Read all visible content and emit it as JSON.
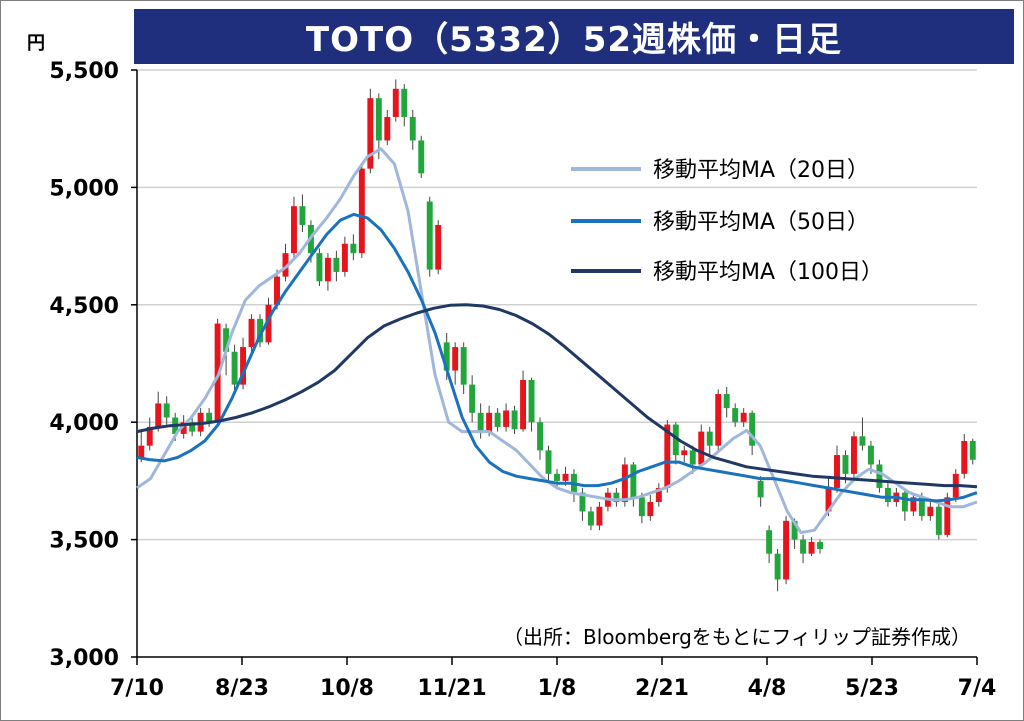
{
  "title": "TOTO（5332）52週株価・日足",
  "chart_data": {
    "type": "candlestick",
    "ylabel": "円",
    "ylim": [
      3000,
      5500
    ],
    "y_ticks": [
      "5,500",
      "5,000",
      "4,500",
      "4,000",
      "3,500",
      "3,000"
    ],
    "y_tick_values": [
      5500,
      5000,
      4500,
      4000,
      3500,
      3000
    ],
    "x_ticks": [
      "7/10",
      "8/23",
      "10/8",
      "11/21",
      "1/8",
      "2/21",
      "4/8",
      "5/23",
      "7/4"
    ],
    "grid": true,
    "up_color": "#e8141b",
    "down_color": "#22a63c",
    "legend_position": "right",
    "series": [
      {
        "name": "移動平均MA（20日）",
        "color": "#9fb7da",
        "values": [
          3720,
          3760,
          3860,
          3960,
          4020,
          4100,
          4200,
          4380,
          4520,
          4580,
          4620,
          4660,
          4720,
          4800,
          4870,
          4950,
          5050,
          5130,
          5165,
          5100,
          4900,
          4550,
          4200,
          4000,
          3960,
          3960,
          3960,
          3920,
          3880,
          3820,
          3760,
          3720,
          3700,
          3690,
          3680,
          3670,
          3670,
          3680,
          3700,
          3720,
          3750,
          3790,
          3830,
          3880,
          3930,
          3965,
          3900,
          3760,
          3620,
          3530,
          3540,
          3620,
          3700,
          3760,
          3800,
          3780,
          3740,
          3700,
          3680,
          3660,
          3640,
          3640,
          3660
        ]
      },
      {
        "name": "移動平均MA（50日）",
        "color": "#1a72bd",
        "values": [
          3850,
          3840,
          3835,
          3850,
          3880,
          3920,
          3990,
          4100,
          4230,
          4360,
          4470,
          4560,
          4640,
          4720,
          4800,
          4860,
          4885,
          4870,
          4820,
          4740,
          4640,
          4520,
          4380,
          4200,
          4020,
          3900,
          3830,
          3790,
          3770,
          3760,
          3750,
          3740,
          3740,
          3730,
          3730,
          3740,
          3760,
          3790,
          3810,
          3830,
          3830,
          3810,
          3800,
          3790,
          3780,
          3770,
          3760,
          3760,
          3750,
          3740,
          3730,
          3720,
          3710,
          3700,
          3690,
          3680,
          3680,
          3670,
          3670,
          3665,
          3670,
          3680,
          3700
        ]
      },
      {
        "name": "移動平均MA（100日）",
        "color": "#203864",
        "values": [
          3960,
          3975,
          3985,
          3990,
          3995,
          4005,
          4020,
          4040,
          4065,
          4095,
          4130,
          4170,
          4220,
          4290,
          4360,
          4410,
          4440,
          4465,
          4485,
          4498,
          4500,
          4495,
          4480,
          4455,
          4420,
          4375,
          4320,
          4260,
          4200,
          4140,
          4080,
          4020,
          3970,
          3920,
          3880,
          3850,
          3830,
          3810,
          3800,
          3790,
          3780,
          3770,
          3765,
          3760,
          3755,
          3750,
          3745,
          3740,
          3735,
          3730,
          3730,
          3725
        ]
      }
    ],
    "candles": [
      {
        "o": 3850,
        "c": 3900,
        "h": 3970,
        "l": 3830
      },
      {
        "o": 3900,
        "c": 3980,
        "h": 4020,
        "l": 3880
      },
      {
        "o": 3980,
        "c": 4080,
        "h": 4130,
        "l": 3960
      },
      {
        "o": 4080,
        "c": 4020,
        "h": 4110,
        "l": 3990
      },
      {
        "o": 4020,
        "c": 3950,
        "h": 4040,
        "l": 3920
      },
      {
        "o": 3950,
        "c": 4000,
        "h": 4030,
        "l": 3930
      },
      {
        "o": 4000,
        "c": 3960,
        "h": 4020,
        "l": 3940
      },
      {
        "o": 3960,
        "c": 4040,
        "h": 4060,
        "l": 3940
      },
      {
        "o": 4040,
        "c": 4000,
        "h": 4060,
        "l": 3980
      },
      {
        "o": 4000,
        "c": 4420,
        "h": 4440,
        "l": 3990
      },
      {
        "o": 4400,
        "c": 4300,
        "h": 4420,
        "l": 4200
      },
      {
        "o": 4300,
        "c": 4160,
        "h": 4330,
        "l": 4120
      },
      {
        "o": 4160,
        "c": 4320,
        "h": 4360,
        "l": 4140
      },
      {
        "o": 4320,
        "c": 4440,
        "h": 4460,
        "l": 4300
      },
      {
        "o": 4440,
        "c": 4340,
        "h": 4460,
        "l": 4320
      },
      {
        "o": 4340,
        "c": 4500,
        "h": 4530,
        "l": 4330
      },
      {
        "o": 4500,
        "c": 4620,
        "h": 4650,
        "l": 4480
      },
      {
        "o": 4620,
        "c": 4720,
        "h": 4760,
        "l": 4600
      },
      {
        "o": 4720,
        "c": 4920,
        "h": 4960,
        "l": 4700
      },
      {
        "o": 4920,
        "c": 4840,
        "h": 4970,
        "l": 4810
      },
      {
        "o": 4840,
        "c": 4720,
        "h": 4860,
        "l": 4680
      },
      {
        "o": 4720,
        "c": 4600,
        "h": 4740,
        "l": 4580
      },
      {
        "o": 4600,
        "c": 4700,
        "h": 4720,
        "l": 4560
      },
      {
        "o": 4700,
        "c": 4640,
        "h": 4730,
        "l": 4600
      },
      {
        "o": 4640,
        "c": 4760,
        "h": 4790,
        "l": 4620
      },
      {
        "o": 4760,
        "c": 4720,
        "h": 4800,
        "l": 4690
      },
      {
        "o": 4720,
        "c": 5080,
        "h": 5100,
        "l": 4700
      },
      {
        "o": 5080,
        "c": 5380,
        "h": 5420,
        "l": 5060
      },
      {
        "o": 5380,
        "c": 5200,
        "h": 5400,
        "l": 5120
      },
      {
        "o": 5200,
        "c": 5300,
        "h": 5330,
        "l": 5180
      },
      {
        "o": 5300,
        "c": 5420,
        "h": 5460,
        "l": 5280
      },
      {
        "o": 5420,
        "c": 5300,
        "h": 5440,
        "l": 5260
      },
      {
        "o": 5300,
        "c": 5200,
        "h": 5330,
        "l": 5160
      },
      {
        "o": 5200,
        "c": 5060,
        "h": 5220,
        "l": 5040
      },
      {
        "o": 4940,
        "c": 4650,
        "h": 4960,
        "l": 4620
      },
      {
        "o": 4650,
        "c": 4840,
        "h": 4860,
        "l": 4630
      },
      {
        "o": 4340,
        "c": 4220,
        "h": 4380,
        "l": 4180
      },
      {
        "o": 4220,
        "c": 4320,
        "h": 4340,
        "l": 4160
      },
      {
        "o": 4320,
        "c": 4160,
        "h": 4340,
        "l": 4120
      },
      {
        "o": 4160,
        "c": 4040,
        "h": 4200,
        "l": 4000
      },
      {
        "o": 4040,
        "c": 3960,
        "h": 4080,
        "l": 3930
      },
      {
        "o": 3960,
        "c": 4040,
        "h": 4070,
        "l": 3940
      },
      {
        "o": 4040,
        "c": 3980,
        "h": 4060,
        "l": 3960
      },
      {
        "o": 3980,
        "c": 4050,
        "h": 4080,
        "l": 3960
      },
      {
        "o": 4050,
        "c": 3970,
        "h": 4070,
        "l": 3950
      },
      {
        "o": 3970,
        "c": 4180,
        "h": 4220,
        "l": 3960
      },
      {
        "o": 4180,
        "c": 4000,
        "h": 4190,
        "l": 3960
      },
      {
        "o": 4000,
        "c": 3880,
        "h": 4020,
        "l": 3840
      },
      {
        "o": 3880,
        "c": 3780,
        "h": 3900,
        "l": 3740
      },
      {
        "o": 3780,
        "c": 3750,
        "h": 3800,
        "l": 3720
      },
      {
        "o": 3750,
        "c": 3780,
        "h": 3810,
        "l": 3730
      },
      {
        "o": 3780,
        "c": 3700,
        "h": 3800,
        "l": 3660
      },
      {
        "o": 3700,
        "c": 3620,
        "h": 3720,
        "l": 3580
      },
      {
        "o": 3620,
        "c": 3560,
        "h": 3640,
        "l": 3540
      },
      {
        "o": 3560,
        "c": 3640,
        "h": 3660,
        "l": 3540
      },
      {
        "o": 3640,
        "c": 3700,
        "h": 3720,
        "l": 3620
      },
      {
        "o": 3700,
        "c": 3660,
        "h": 3720,
        "l": 3640
      },
      {
        "o": 3660,
        "c": 3820,
        "h": 3850,
        "l": 3640
      },
      {
        "o": 3820,
        "c": 3680,
        "h": 3830,
        "l": 3640
      },
      {
        "o": 3680,
        "c": 3600,
        "h": 3700,
        "l": 3570
      },
      {
        "o": 3600,
        "c": 3660,
        "h": 3690,
        "l": 3580
      },
      {
        "o": 3660,
        "c": 3720,
        "h": 3740,
        "l": 3640
      },
      {
        "o": 3720,
        "c": 3990,
        "h": 4010,
        "l": 3700
      },
      {
        "o": 3990,
        "c": 3860,
        "h": 4000,
        "l": 3820
      },
      {
        "o": 3860,
        "c": 3880,
        "h": 3900,
        "l": 3830
      },
      {
        "o": 3880,
        "c": 3820,
        "h": 3900,
        "l": 3780
      },
      {
        "o": 3820,
        "c": 3960,
        "h": 3990,
        "l": 3800
      },
      {
        "o": 3960,
        "c": 3900,
        "h": 3980,
        "l": 3860
      },
      {
        "o": 3900,
        "c": 4120,
        "h": 4140,
        "l": 3880
      },
      {
        "o": 4120,
        "c": 4060,
        "h": 4150,
        "l": 4020
      },
      {
        "o": 4060,
        "c": 4000,
        "h": 4080,
        "l": 3980
      },
      {
        "o": 4000,
        "c": 4040,
        "h": 4060,
        "l": 3980
      },
      {
        "o": 4040,
        "c": 3900,
        "h": 4050,
        "l": 3860
      },
      {
        "o": 3750,
        "c": 3680,
        "h": 3770,
        "l": 3640
      },
      {
        "o": 3540,
        "c": 3440,
        "h": 3560,
        "l": 3400
      },
      {
        "o": 3440,
        "c": 3330,
        "h": 3460,
        "l": 3280
      },
      {
        "o": 3330,
        "c": 3580,
        "h": 3600,
        "l": 3310
      },
      {
        "o": 3580,
        "c": 3500,
        "h": 3590,
        "l": 3460
      },
      {
        "o": 3500,
        "c": 3440,
        "h": 3520,
        "l": 3400
      },
      {
        "o": 3440,
        "c": 3490,
        "h": 3510,
        "l": 3430
      },
      {
        "o": 3490,
        "c": 3460,
        "h": 3500,
        "l": 3440
      },
      {
        "o": 3620,
        "c": 3720,
        "h": 3760,
        "l": 3600
      },
      {
        "o": 3720,
        "c": 3860,
        "h": 3900,
        "l": 3700
      },
      {
        "o": 3860,
        "c": 3780,
        "h": 3880,
        "l": 3740
      },
      {
        "o": 3780,
        "c": 3940,
        "h": 3960,
        "l": 3760
      },
      {
        "o": 3940,
        "c": 3900,
        "h": 4020,
        "l": 3880
      },
      {
        "o": 3900,
        "c": 3820,
        "h": 3920,
        "l": 3780
      },
      {
        "o": 3820,
        "c": 3720,
        "h": 3840,
        "l": 3700
      },
      {
        "o": 3720,
        "c": 3660,
        "h": 3740,
        "l": 3640
      },
      {
        "o": 3660,
        "c": 3700,
        "h": 3720,
        "l": 3640
      },
      {
        "o": 3700,
        "c": 3620,
        "h": 3720,
        "l": 3580
      },
      {
        "o": 3620,
        "c": 3680,
        "h": 3700,
        "l": 3600
      },
      {
        "o": 3680,
        "c": 3600,
        "h": 3700,
        "l": 3580
      },
      {
        "o": 3600,
        "c": 3640,
        "h": 3660,
        "l": 3580
      },
      {
        "o": 3640,
        "c": 3520,
        "h": 3660,
        "l": 3500
      },
      {
        "o": 3520,
        "c": 3680,
        "h": 3700,
        "l": 3510
      },
      {
        "o": 3680,
        "c": 3780,
        "h": 3800,
        "l": 3660
      },
      {
        "o": 3780,
        "c": 3920,
        "h": 3950,
        "l": 3760
      },
      {
        "o": 3920,
        "c": 3840,
        "h": 3930,
        "l": 3820
      }
    ]
  },
  "legend": [
    {
      "label": "移動平均MA（20日）",
      "color": "#9fb7da"
    },
    {
      "label": "移動平均MA（50日）",
      "color": "#1a72bd"
    },
    {
      "label": "移動平均MA（100日）",
      "color": "#203864"
    }
  ],
  "source": "（出所：Bloombergをもとにフィリップ証券作成）"
}
